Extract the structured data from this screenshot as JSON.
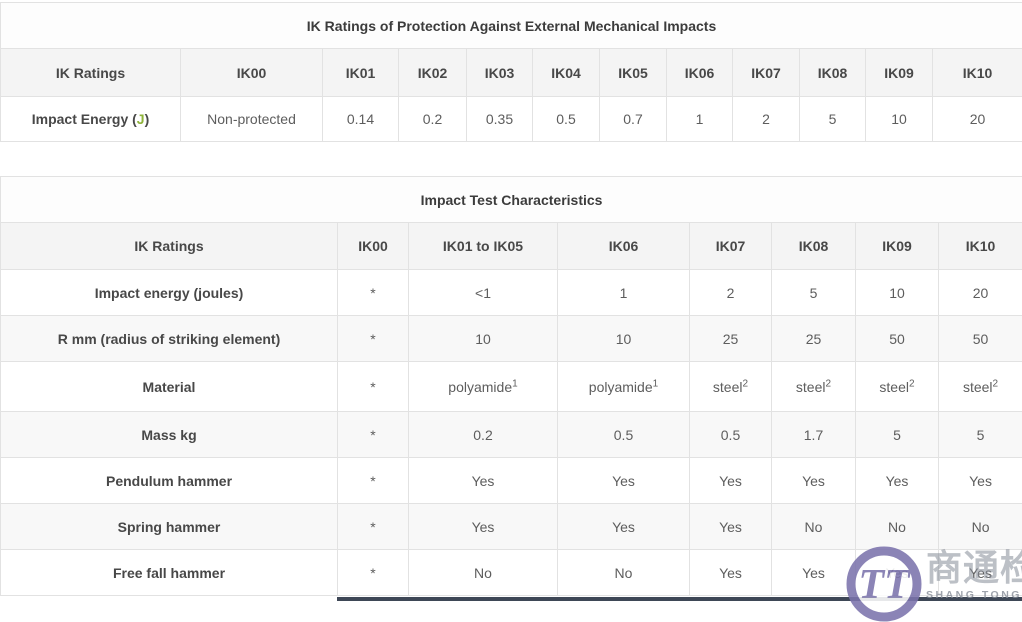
{
  "table1": {
    "title": "IK Ratings of Protection Against External Mechanical Impacts",
    "headers": [
      "IK Ratings",
      "IK00",
      "IK01",
      "IK02",
      "IK03",
      "IK04",
      "IK05",
      "IK06",
      "IK07",
      "IK08",
      "IK09",
      "IK10"
    ],
    "row": {
      "label_text": "Impact Energy (",
      "label_unit": "J",
      "label_close": ")",
      "values": [
        "Non-protected",
        "0.14",
        "0.2",
        "0.35",
        "0.5",
        "0.7",
        "1",
        "2",
        "5",
        "10",
        "20"
      ]
    },
    "unit_color": "#8fb43a"
  },
  "table2": {
    "title": "Impact Test Characteristics",
    "headers": [
      "IK Ratings",
      "IK00",
      "IK01 to IK05",
      "IK06",
      "IK07",
      "IK08",
      "IK09",
      "IK10"
    ],
    "rows": [
      {
        "label": "Impact energy (joules)",
        "values": [
          "*",
          "<1",
          "1",
          "2",
          "5",
          "10",
          "20"
        ]
      },
      {
        "label": "R mm (radius of striking element)",
        "values": [
          "*",
          "10",
          "10",
          "25",
          "25",
          "50",
          "50"
        ]
      },
      {
        "label": "Material",
        "values": [
          "*",
          "polyamide^1",
          "polyamide^1",
          "steel^2",
          "steel^2",
          "steel^2",
          "steel^2"
        ]
      },
      {
        "label": "Mass kg",
        "values": [
          "*",
          "0.2",
          "0.5",
          "0.5",
          "1.7",
          "5",
          "5"
        ]
      },
      {
        "label": "Pendulum hammer",
        "values": [
          "*",
          "Yes",
          "Yes",
          "Yes",
          "Yes",
          "Yes",
          "Yes"
        ]
      },
      {
        "label": "Spring hammer",
        "values": [
          "*",
          "Yes",
          "Yes",
          "Yes",
          "No",
          "No",
          "No"
        ]
      },
      {
        "label": "Free fall hammer",
        "values": [
          "*",
          "No",
          "No",
          "Yes",
          "Yes",
          "Yes",
          "Yes"
        ]
      }
    ]
  },
  "watermark": {
    "monogram": "TT",
    "chinese": "商通检测",
    "english": "SHANG TONG TESTING",
    "ring_color": "#7c74ad",
    "text_color": "#878d98"
  }
}
